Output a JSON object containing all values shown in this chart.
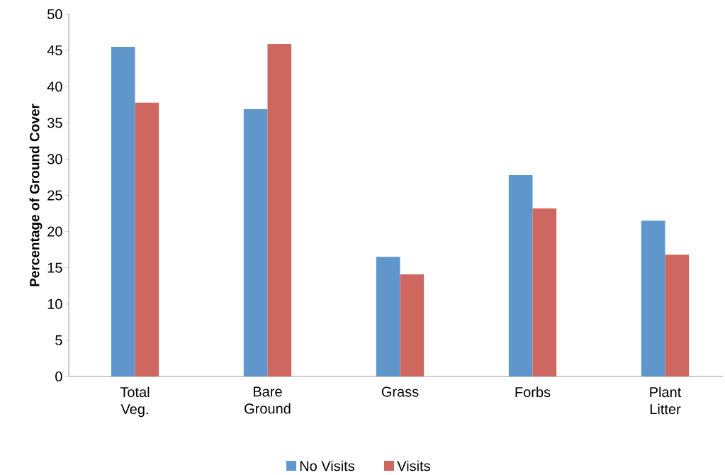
{
  "chart_data": {
    "type": "bar",
    "ylabel": "Percentage of Ground Cover",
    "categories": [
      "Total Veg.",
      "Bare Ground",
      "Grass",
      "Forbs",
      "Plant Litter"
    ],
    "series": [
      {
        "name": "No Visits",
        "color": "#5F97CD",
        "values": [
          45.5,
          36.9,
          16.5,
          27.8,
          21.5
        ]
      },
      {
        "name": "Visits",
        "color": "#CD6760",
        "values": [
          37.8,
          45.9,
          14.1,
          23.2,
          16.8
        ]
      }
    ],
    "ylim": [
      0,
      50
    ],
    "yticks": [
      0,
      5,
      10,
      15,
      20,
      25,
      30,
      35,
      40,
      45,
      50
    ],
    "grid": false,
    "legend": "bottom"
  }
}
